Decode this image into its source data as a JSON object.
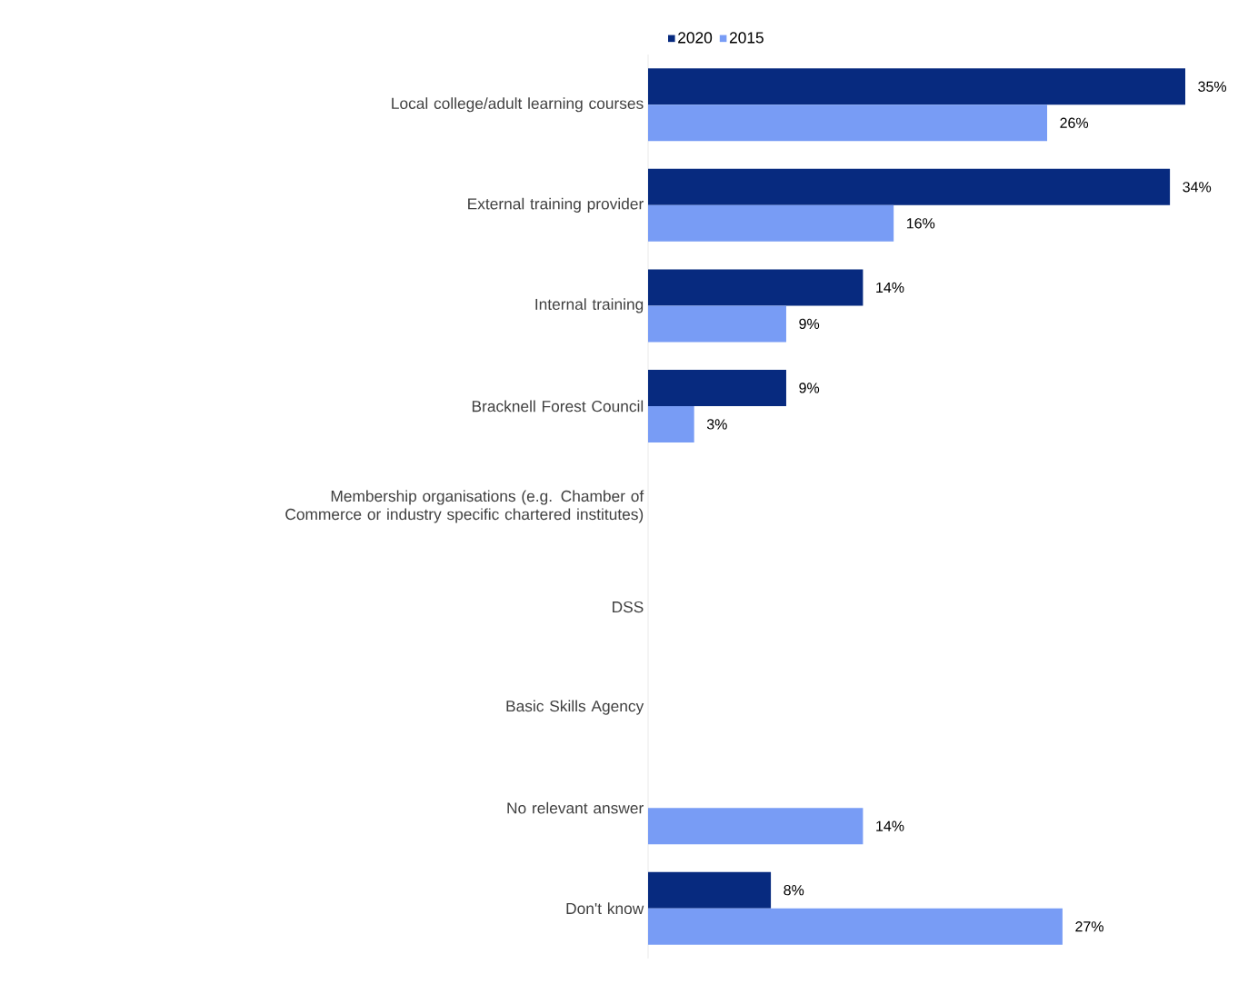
{
  "chart_data": {
    "type": "bar",
    "orientation": "horizontal",
    "categories": [
      "Local college/adult learning courses",
      "External training provider",
      "Internal training",
      "Bracknell Forest Council",
      "Membership organisations (e.g. Chamber of Commerce or industry specific chartered institutes)",
      "DSS",
      "Basic Skills Agency",
      "No relevant answer",
      "Don't know"
    ],
    "series": [
      {
        "name": "2020",
        "color": "#072a7f",
        "values": [
          35,
          34,
          14,
          9,
          null,
          null,
          null,
          null,
          8
        ],
        "value_labels": [
          "35%",
          "34%",
          "14%",
          "9%",
          null,
          null,
          null,
          null,
          "8%"
        ]
      },
      {
        "name": "2015",
        "color": "#789cf5",
        "values": [
          26,
          16,
          9,
          3,
          null,
          null,
          null,
          14,
          27
        ],
        "value_labels": [
          "26%",
          "16%",
          "9%",
          "3%",
          null,
          null,
          null,
          "14%",
          "27%"
        ]
      }
    ],
    "tick_labels": "y",
    "legend": "top"
  }
}
